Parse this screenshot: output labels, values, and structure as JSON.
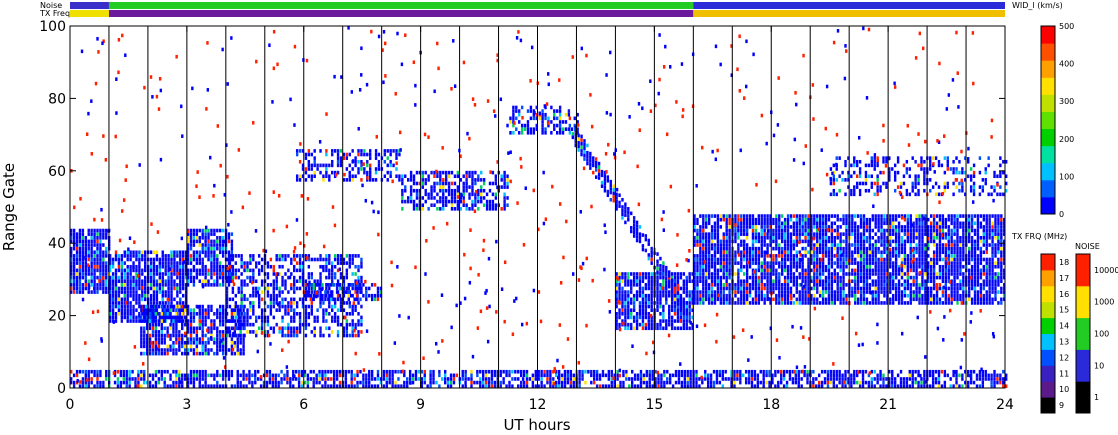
{
  "chart_data": {
    "type": "heatmap",
    "title": "",
    "xlabel": "UT hours",
    "ylabel": "Range Gate",
    "xlim": [
      0,
      24
    ],
    "ylim": [
      0,
      100
    ],
    "x_ticks": [
      "0",
      "3",
      "6",
      "9",
      "12",
      "15",
      "18",
      "21",
      "24"
    ],
    "y_ticks": [
      "0",
      "20",
      "40",
      "60",
      "80",
      "100"
    ],
    "vertical_lines_hours": [
      1,
      2,
      3,
      4,
      5,
      6,
      7,
      8,
      9,
      10,
      11,
      12,
      13,
      14,
      15,
      16,
      17,
      18,
      19,
      20,
      21,
      22,
      23
    ],
    "top_strips": [
      {
        "label": "Noise",
        "segments": [
          {
            "from": 0,
            "to": 1,
            "color": "#3a2fc8"
          },
          {
            "from": 1,
            "to": 16,
            "color": "#22cc22"
          },
          {
            "from": 16,
            "to": 24,
            "color": "#2a2ad8"
          }
        ]
      },
      {
        "label": "TX Freq",
        "segments": [
          {
            "from": 0,
            "to": 1,
            "color": "#f0e000"
          },
          {
            "from": 1,
            "to": 16,
            "color": "#6a1a9a"
          },
          {
            "from": 16,
            "to": 24,
            "color": "#f0c000"
          }
        ]
      }
    ],
    "data_regions": [
      {
        "t0": 0.0,
        "t1": 1.0,
        "g0": 26,
        "g1": 44,
        "density": 0.9
      },
      {
        "t0": 1.0,
        "t1": 3.0,
        "g0": 18,
        "g1": 38,
        "density": 0.85
      },
      {
        "t0": 3.0,
        "t1": 4.2,
        "g0": 28,
        "g1": 44,
        "density": 0.8
      },
      {
        "t0": 1.8,
        "t1": 4.5,
        "g0": 9,
        "g1": 23,
        "density": 0.8
      },
      {
        "t0": 4.0,
        "t1": 7.5,
        "g0": 14,
        "g1": 37,
        "density": 0.55
      },
      {
        "t0": 6.0,
        "t1": 8.0,
        "g0": 24,
        "g1": 29,
        "density": 0.6
      },
      {
        "t0": 5.8,
        "t1": 8.5,
        "g0": 57,
        "g1": 66,
        "density": 0.5
      },
      {
        "t0": 8.5,
        "t1": 11.2,
        "g0": 49,
        "g1": 60,
        "density": 0.6
      },
      {
        "t0": 11.2,
        "t1": 13.0,
        "g0": 70,
        "g1": 78,
        "density": 0.5
      },
      {
        "t0": 14.0,
        "t1": 16.0,
        "g0": 16,
        "g1": 32,
        "density": 0.8
      },
      {
        "t0": 16.0,
        "t1": 24.0,
        "g0": 23,
        "g1": 48,
        "density": 0.85
      },
      {
        "t0": 19.5,
        "t1": 24.0,
        "g0": 53,
        "g1": 64,
        "density": 0.4
      },
      {
        "t0": 0.0,
        "t1": 24.0,
        "g0": 0,
        "g1": 5,
        "density": 0.7
      }
    ],
    "diagonal_band": {
      "t_start": 12.8,
      "g_start": 72,
      "t_end": 15.8,
      "g_end": 22,
      "width": 6
    },
    "colorbars": [
      {
        "title": "WID_l (km/s)",
        "min": 0,
        "max": 500,
        "tick_labels": [
          "0",
          "100",
          "200",
          "300",
          "400",
          "500"
        ],
        "colors": [
          "#0000ff",
          "#0060ff",
          "#00c0ff",
          "#00e0a0",
          "#00d000",
          "#60e000",
          "#c0e000",
          "#ffe000",
          "#ffa000",
          "#ff5000",
          "#ff0000"
        ]
      },
      {
        "title": "TX FRQ (MHz)",
        "tick_labels": [
          "9",
          "10",
          "11",
          "12",
          "13",
          "14",
          "15",
          "16",
          "17",
          "18"
        ],
        "colors": [
          "#000000",
          "#5a1a8a",
          "#3a20c0",
          "#0050ff",
          "#00c0ff",
          "#00d000",
          "#c0e000",
          "#ffe000",
          "#ffa000",
          "#ff2000"
        ]
      },
      {
        "title": "NOISE",
        "tick_labels": [
          "1",
          "10",
          "100",
          "1000",
          "10000"
        ],
        "colors": [
          "#000000",
          "#2a2ad8",
          "#22cc22",
          "#ffe000",
          "#ff2000"
        ]
      }
    ],
    "palette": [
      "#0000ff",
      "#1010e0",
      "#0050ff",
      "#00c0ff",
      "#00d060",
      "#22cc22",
      "#ffe000",
      "#ff2000",
      "#ff0000"
    ]
  }
}
